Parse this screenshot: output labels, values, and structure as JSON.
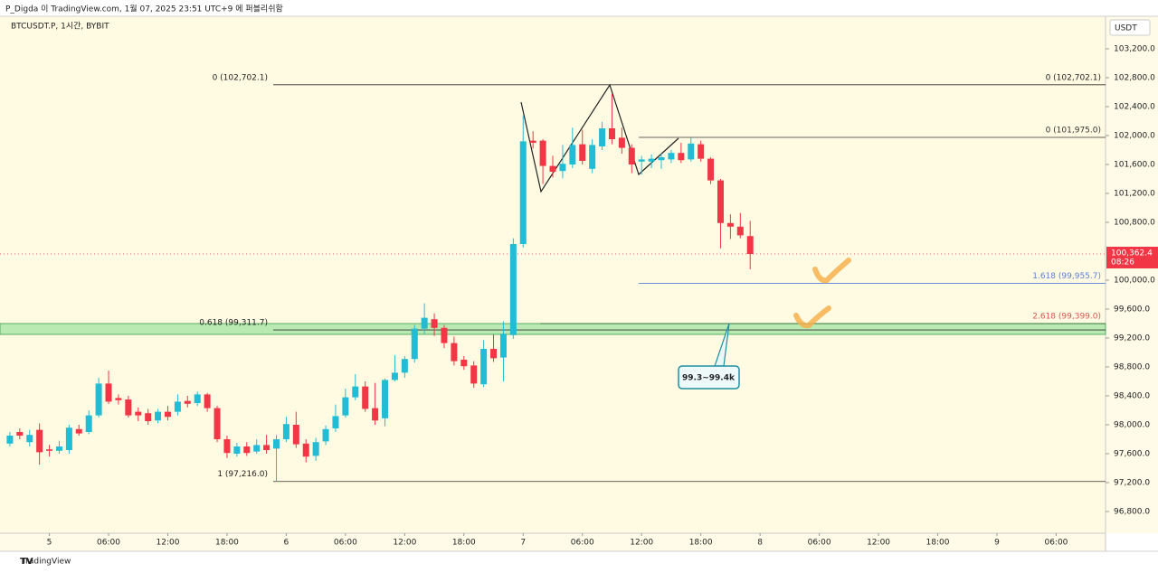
{
  "header": {
    "publisher": "P_Digda 이 TradingView.com, 1월 07, 2025 23:51 UTC+9 에 퍼블리쉬함",
    "footer": "TradingView"
  },
  "chart_data": {
    "type": "candlestick",
    "title": "BTCUSDT.P, 1시간, BYBIT",
    "y_unit": "USDT",
    "up_color": "#22bcd4",
    "down_color": "#f23645",
    "grid": false,
    "xlim": [
      -1,
      111
    ],
    "xticks": [
      {
        "value": 4,
        "label": "5"
      },
      {
        "value": 10,
        "label": "06:00"
      },
      {
        "value": 16,
        "label": "12:00"
      },
      {
        "value": 22,
        "label": "18:00"
      },
      {
        "value": 28,
        "label": "6"
      },
      {
        "value": 34,
        "label": "06:00"
      },
      {
        "value": 40,
        "label": "12:00"
      },
      {
        "value": 46,
        "label": "18:00"
      },
      {
        "value": 52,
        "label": "7"
      },
      {
        "value": 58,
        "label": "06:00"
      },
      {
        "value": 64,
        "label": "12:00"
      },
      {
        "value": 70,
        "label": "18:00"
      },
      {
        "value": 76,
        "label": "8"
      },
      {
        "value": 82,
        "label": "06:00"
      },
      {
        "value": 88,
        "label": "12:00"
      },
      {
        "value": 94,
        "label": "18:00"
      },
      {
        "value": 100,
        "label": "9"
      },
      {
        "value": 106,
        "label": "06:00"
      }
    ],
    "ylim": [
      96500,
      103650
    ],
    "yticks": [
      {
        "value": 96800,
        "label": "96,800.0"
      },
      {
        "value": 97200,
        "label": "97,200.0"
      },
      {
        "value": 97600,
        "label": "97,600.0"
      },
      {
        "value": 98000,
        "label": "98,000.0"
      },
      {
        "value": 98400,
        "label": "98,400.0"
      },
      {
        "value": 98800,
        "label": "98,800.0"
      },
      {
        "value": 99200,
        "label": "99,200.0"
      },
      {
        "value": 99600,
        "label": "99,600.0"
      },
      {
        "value": 100000,
        "label": "100,000.0"
      },
      {
        "value": 100800,
        "label": "100,800.0"
      },
      {
        "value": 101200,
        "label": "101,200.0"
      },
      {
        "value": 101600,
        "label": "101,600.0"
      },
      {
        "value": 102000,
        "label": "102,000.0"
      },
      {
        "value": 102400,
        "label": "102,400.0"
      },
      {
        "value": 102800,
        "label": "102,800.0"
      },
      {
        "value": 103200,
        "label": "103,200.0"
      }
    ],
    "open": [
      97740,
      97900,
      97760,
      97930,
      97660,
      97640,
      97650,
      97940,
      97900,
      98130,
      98570,
      98370,
      98350,
      98180,
      98160,
      98060,
      98180,
      98180,
      98330,
      98300,
      98420,
      98230,
      97800,
      97600,
      97700,
      97630,
      97720,
      97670,
      97800,
      98000,
      97740,
      97570,
      97770,
      97950,
      98130,
      98380,
      98530,
      98230,
      98090,
      98620,
      98720,
      98910,
      99330,
      99460,
      99340,
      99130,
      98900,
      98820,
      98560,
      99050,
      98930,
      99240,
      100500,
      101930,
      101930,
      101580,
      101510,
      101600,
      101880,
      101540,
      101850,
      102100,
      101970,
      101830,
      101640,
      101640,
      101660,
      101670,
      101760,
      101670,
      101880,
      101680,
      101380,
      100790,
      100740,
      100610
    ],
    "high": [
      97900,
      97950,
      97930,
      98020,
      97720,
      97780,
      98000,
      98000,
      98200,
      98650,
      98750,
      98420,
      98400,
      98240,
      98220,
      98220,
      98260,
      98420,
      98400,
      98460,
      98440,
      98260,
      97850,
      97750,
      97760,
      97800,
      97860,
      97860,
      98110,
      98180,
      97800,
      97820,
      97990,
      98280,
      98500,
      98700,
      98600,
      98580,
      98640,
      98960,
      98950,
      99380,
      99680,
      99540,
      99380,
      99220,
      98950,
      98880,
      99170,
      99250,
      99430,
      100580,
      102280,
      102060,
      101950,
      101720,
      101870,
      102110,
      102080,
      101950,
      102190,
      102580,
      102110,
      101880,
      101720,
      101740,
      101750,
      101800,
      101900,
      101970,
      101930,
      101700,
      101400,
      100910,
      100930,
      100820
    ],
    "low": [
      97700,
      97800,
      97700,
      97450,
      97560,
      97600,
      97600,
      97850,
      97870,
      98100,
      98290,
      98280,
      98100,
      98050,
      98000,
      98020,
      98060,
      98130,
      98240,
      98260,
      98180,
      97760,
      97540,
      97560,
      97570,
      97600,
      97600,
      97216,
      97760,
      97680,
      97480,
      97500,
      97720,
      97900,
      98100,
      98340,
      98180,
      98000,
      97980,
      98600,
      98650,
      98860,
      99260,
      99230,
      99060,
      98820,
      98760,
      98510,
      98520,
      98870,
      98600,
      99190,
      100450,
      101820,
      101330,
      101420,
      101410,
      101550,
      101600,
      101480,
      101800,
      101880,
      101750,
      101480,
      101460,
      101550,
      101540,
      101620,
      101620,
      101640,
      101640,
      101330,
      100440,
      100570,
      100580,
      100150
    ],
    "close": [
      97850,
      97850,
      97860,
      97620,
      97640,
      97700,
      97960,
      97880,
      98130,
      98570,
      98320,
      98340,
      98130,
      98130,
      98050,
      98180,
      98110,
      98320,
      98290,
      98420,
      98230,
      97800,
      97610,
      97700,
      97610,
      97720,
      97650,
      97800,
      98010,
      97730,
      97560,
      97760,
      97940,
      98120,
      98380,
      98530,
      98220,
      98060,
      98620,
      98720,
      98910,
      99330,
      99480,
      99340,
      99130,
      98880,
      98810,
      98570,
      99050,
      98920,
      99260,
      100500,
      101920,
      101900,
      101580,
      101500,
      101610,
      101870,
      101650,
      101870,
      102100,
      101950,
      101830,
      101600,
      101670,
      101680,
      101700,
      101760,
      101660,
      101890,
      101680,
      101380,
      100790,
      100740,
      100620,
      100362.4
    ],
    "last_price": {
      "value": 100362.4,
      "label": "100,362.4",
      "countdown": "08:26"
    },
    "fib_a": [
      {
        "label": "0 (102,702.1)",
        "value": 102702.1,
        "color": "#333333"
      },
      {
        "label": "0.618 (99,311.7)",
        "value": 99311.7,
        "color": "#333333"
      },
      {
        "label": "1 (97,216.0)",
        "value": 97216.0,
        "color": "#333333"
      }
    ],
    "fib_b": [
      {
        "label": "0 (101,975.0)",
        "value": 101975.0,
        "color": "#333333"
      },
      {
        "label": "1.618 (99,955.7)",
        "value": 99955.7,
        "color": "#5b7fd6"
      },
      {
        "label": "2.618 (99,399.0)",
        "value": 99399.0,
        "color": "#e05252"
      }
    ],
    "zone": {
      "ymin": 99250,
      "ymax": 99400,
      "color": "#7fdc8a",
      "label": "99.3~99.4k"
    }
  }
}
